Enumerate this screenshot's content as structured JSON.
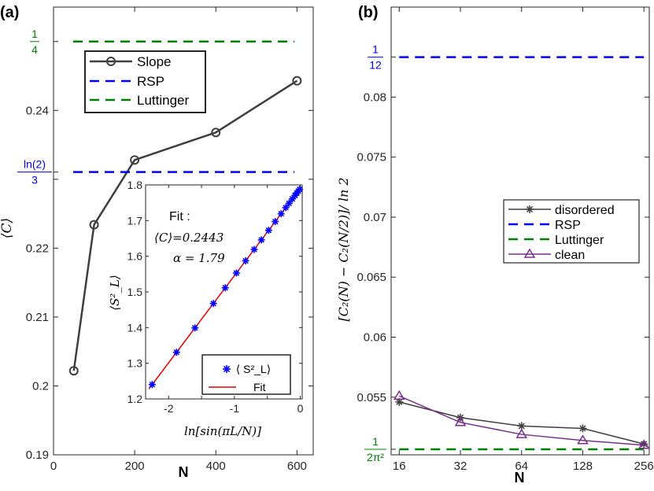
{
  "colors": {
    "slope": "#3f3f3f",
    "rsp": "#0000ee",
    "luttinger": "#008000",
    "fit_points": "#0000ff",
    "fit_line": "#e60000",
    "disordered": "#3f3f3f",
    "clean": "#7b2d8e"
  },
  "chart_data": [
    {
      "panel": "(a)",
      "type": "line",
      "xlabel": "N",
      "ylabel": "⟨C⟩",
      "xlim": [
        0,
        640
      ],
      "ylim": [
        0.19,
        0.255
      ],
      "xticks": [
        0,
        200,
        400,
        600
      ],
      "yticks": [
        0.19,
        0.2,
        0.21,
        0.22,
        0.23,
        0.24
      ],
      "ytick_labels": [
        "0.19",
        "0.2",
        "0.21",
        "0.22",
        "",
        "0.24"
      ],
      "special_ticks": [
        {
          "label_num": "ln(2)",
          "label_den": "3",
          "value": 0.231049,
          "color": "#0000ee"
        },
        {
          "label_num": "1",
          "label_den": "4",
          "value": 0.25,
          "color": "#008000"
        }
      ],
      "series": [
        {
          "name": "Slope",
          "kind": "line-marker",
          "marker": "circle",
          "x": [
            50,
            100,
            200,
            400,
            600
          ],
          "y": [
            0.2022,
            0.2234,
            0.2328,
            0.2368,
            0.2443
          ]
        },
        {
          "name": "RSP",
          "kind": "hline",
          "y": 0.231049
        },
        {
          "name": "Luttinger",
          "kind": "hline",
          "y": 0.25
        }
      ],
      "legend": {
        "position": "top-left",
        "entries": [
          "Slope",
          "RSP",
          "Luttinger"
        ]
      },
      "inset": {
        "type": "scatter",
        "xlabel": "ln[sin(πL/N)]",
        "ylabel": "⟨S²_L⟩",
        "xlim": [
          -2.35,
          0.03
        ],
        "ylim": [
          1.2,
          1.8
        ],
        "xticks": [
          -2,
          -1.5,
          -1,
          -0.5,
          0
        ],
        "xtick_labels": [
          "-2",
          "",
          "-1",
          "",
          "0"
        ],
        "yticks": [
          1.2,
          1.3,
          1.4,
          1.5,
          1.6,
          1.7,
          1.8
        ],
        "annotation_title": "Fit :",
        "annotation_c": "⟨C⟩=0.2443",
        "annotation_alpha": "α = 1.79",
        "points_x": [
          -2.25,
          -1.88,
          -1.6,
          -1.32,
          -1.14,
          -0.97,
          -0.83,
          -0.7,
          -0.59,
          -0.48,
          -0.38,
          -0.29,
          -0.22,
          -0.17,
          -0.12,
          -0.08,
          -0.05,
          -0.03,
          -0.01
        ],
        "fit": {
          "intercept": 1.79,
          "slope": 0.2443
        },
        "legend": {
          "position": "bottom-right",
          "entries": [
            "⟨ S²_L⟩",
            "Fit"
          ]
        }
      }
    },
    {
      "panel": "(b)",
      "type": "line",
      "xlabel": "N",
      "ylabel": "[C₂(N) − C₂(N/2)]/ ln 2",
      "x_scale": "log2",
      "xticks": [
        16,
        32,
        64,
        128,
        256
      ],
      "xlim": [
        14.6,
        272
      ],
      "ylim": [
        0.0502,
        0.0875
      ],
      "yticks": [
        0.055,
        0.06,
        0.065,
        0.07,
        0.075,
        0.08
      ],
      "special_ticks": [
        {
          "label_num": "1",
          "label_den": "12",
          "value": 0.083333,
          "color": "#0000ee"
        },
        {
          "label_num": "1",
          "label_den": "2π²",
          "value": 0.05066,
          "color": "#008000"
        }
      ],
      "series": [
        {
          "name": "disordered",
          "kind": "line-marker",
          "marker": "asterisk",
          "x": [
            16,
            32,
            64,
            128,
            256
          ],
          "y": [
            0.0546,
            0.0533,
            0.0526,
            0.0524,
            0.0511
          ]
        },
        {
          "name": "RSP",
          "kind": "hline",
          "y": 0.083333
        },
        {
          "name": "Luttinger",
          "kind": "hline",
          "y": 0.05066
        },
        {
          "name": "clean",
          "kind": "line-marker",
          "marker": "triangle",
          "x": [
            16,
            32,
            64,
            128,
            256
          ],
          "y": [
            0.0551,
            0.0529,
            0.0519,
            0.0514,
            0.051
          ]
        }
      ],
      "legend": {
        "position": "center-right",
        "entries": [
          "disordered",
          "RSP",
          "Luttinger",
          "clean"
        ]
      }
    }
  ]
}
